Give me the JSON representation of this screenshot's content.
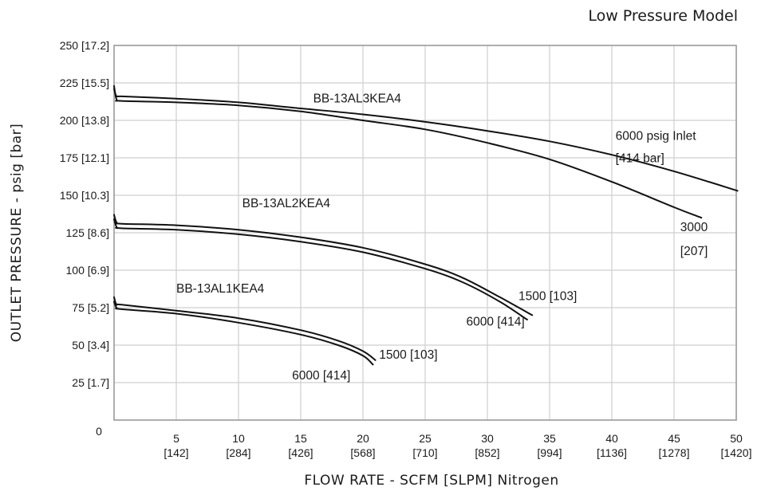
{
  "chart_data": {
    "type": "line",
    "title": "Low Pressure Model",
    "xlabel": "FLOW RATE - SCFM [SLPM] Nitrogen",
    "ylabel": "OUTLET PRESSURE - psig [bar]",
    "xlim": [
      0,
      50
    ],
    "ylim": [
      0,
      250
    ],
    "grid": true,
    "origin_label": "0",
    "x_ticks": [
      {
        "value": 5,
        "label": "5",
        "sub": "[142]"
      },
      {
        "value": 10,
        "label": "10",
        "sub": "[284]"
      },
      {
        "value": 15,
        "label": "15",
        "sub": "[426]"
      },
      {
        "value": 20,
        "label": "20",
        "sub": "[568]"
      },
      {
        "value": 25,
        "label": "25",
        "sub": "[710]"
      },
      {
        "value": 30,
        "label": "30",
        "sub": "[852]"
      },
      {
        "value": 35,
        "label": "35",
        "sub": "[994]"
      },
      {
        "value": 40,
        "label": "40",
        "sub": "[1136]"
      },
      {
        "value": 45,
        "label": "45",
        "sub": "[1278]"
      },
      {
        "value": 50,
        "label": "50",
        "sub": "[1420]"
      }
    ],
    "y_ticks": [
      {
        "value": 25,
        "label": "25 [1.7]"
      },
      {
        "value": 50,
        "label": "50 [3.4]"
      },
      {
        "value": 75,
        "label": "75 [5.2]"
      },
      {
        "value": 100,
        "label": "100 [6.9]"
      },
      {
        "value": 125,
        "label": "125 [8.6]"
      },
      {
        "value": 150,
        "label": "150 [10.3]"
      },
      {
        "value": 175,
        "label": "175 [12.1]"
      },
      {
        "value": 200,
        "label": "200 [13.8]"
      },
      {
        "value": 225,
        "label": "225 [15.5]"
      },
      {
        "value": 250,
        "label": "250 [17.2]"
      }
    ],
    "series": [
      {
        "x": [
          0,
          0.2,
          0.6,
          5,
          10,
          15,
          20,
          25,
          30,
          35,
          40,
          45,
          50.1
        ],
        "values": [
          221,
          216,
          216,
          214.5,
          212,
          208,
          204,
          199,
          193,
          186,
          177,
          166,
          153
        ]
      },
      {
        "x": [
          0,
          0.2,
          0.6,
          5,
          10,
          15,
          20,
          25,
          30,
          35,
          40,
          45,
          47.2
        ],
        "values": [
          223,
          214,
          213,
          212,
          210,
          206,
          200,
          194,
          185,
          174,
          159,
          142,
          135
        ]
      },
      {
        "x": [
          0,
          0.2,
          0.6,
          5,
          10,
          15,
          20,
          25,
          28,
          31,
          33.6
        ],
        "values": [
          137,
          132,
          131,
          130,
          127,
          122,
          115,
          104,
          95,
          82,
          70
        ]
      },
      {
        "x": [
          0,
          0.2,
          0.6,
          5,
          10,
          15,
          20,
          25,
          28,
          31,
          33.2
        ],
        "values": [
          134,
          129,
          128,
          127,
          124,
          119,
          112,
          101,
          92,
          79,
          67
        ]
      },
      {
        "x": [
          0,
          0.2,
          0.6,
          5,
          10,
          15,
          18,
          20,
          21
        ],
        "values": [
          82,
          77,
          77,
          73,
          68,
          60,
          53,
          46,
          40
        ]
      },
      {
        "x": [
          0,
          0.2,
          0.6,
          5,
          10,
          15,
          18,
          20,
          20.8
        ],
        "values": [
          79,
          75,
          74,
          71,
          65,
          57,
          50,
          43,
          37
        ]
      }
    ],
    "annotations": [
      {
        "text": "BB-13AL3KEA4",
        "x": 16,
        "y": 212
      },
      {
        "text": "6000 psig Inlet",
        "x": 40.3,
        "y": 187
      },
      {
        "text": "[414 bar]",
        "x": 40.3,
        "y": 172
      },
      {
        "text": "3000",
        "x": 45.5,
        "y": 126
      },
      {
        "text": "[207]",
        "x": 45.5,
        "y": 110
      },
      {
        "text": "BB-13AL2KEA4",
        "x": 10.3,
        "y": 142
      },
      {
        "text": "1500 [103]",
        "x": 32.5,
        "y": 80
      },
      {
        "text": "6000 [414]",
        "x": 28.3,
        "y": 63
      },
      {
        "text": "BB-13AL1KEA4",
        "x": 5,
        "y": 85
      },
      {
        "text": "1500 [103]",
        "x": 21.3,
        "y": 41
      },
      {
        "text": "6000 [414]",
        "x": 14.3,
        "y": 27
      }
    ]
  },
  "colors": {
    "line": "#111111",
    "grid": "#cfcfcf",
    "frame": "#9a9a9a",
    "text": "#1a1a1a"
  }
}
